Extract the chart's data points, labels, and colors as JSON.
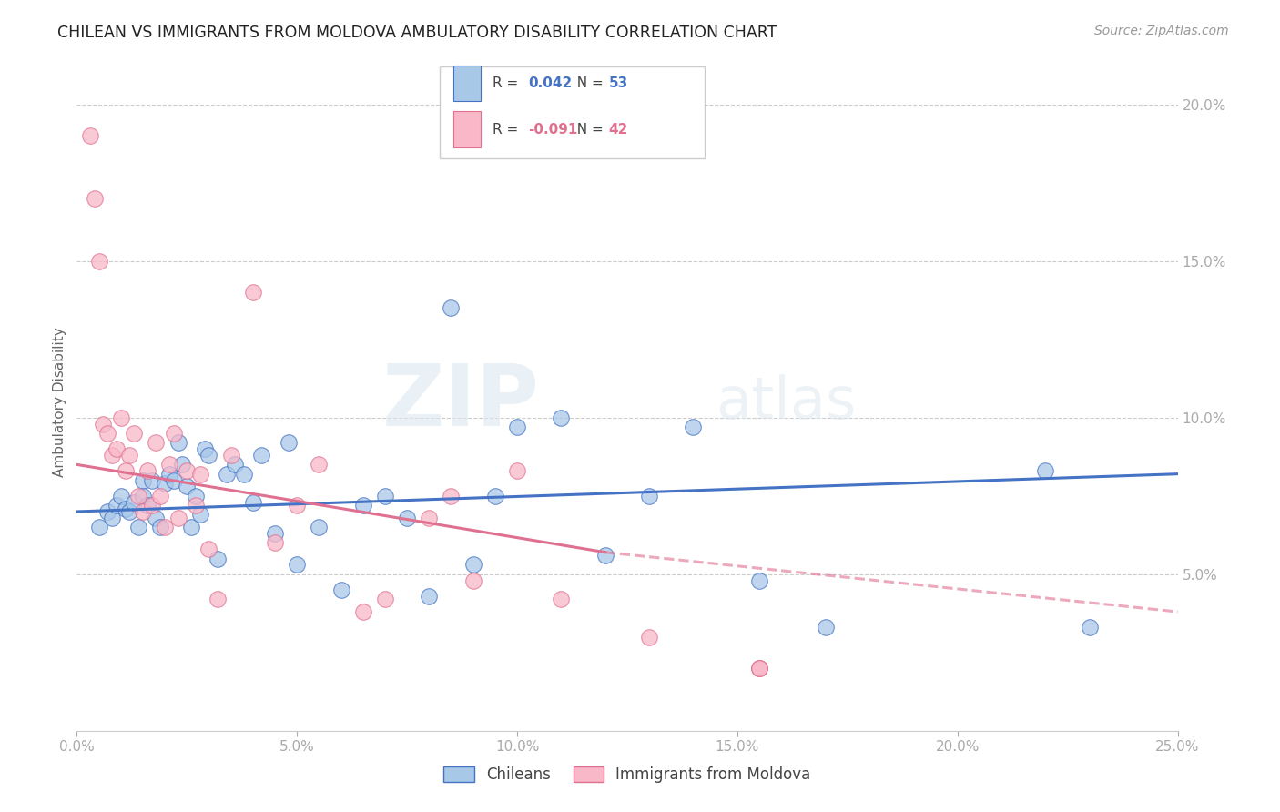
{
  "title": "CHILEAN VS IMMIGRANTS FROM MOLDOVA AMBULATORY DISABILITY CORRELATION CHART",
  "source": "Source: ZipAtlas.com",
  "ylabel": "Ambulatory Disability",
  "xlim": [
    0.0,
    0.25
  ],
  "ylim": [
    0.0,
    0.21
  ],
  "xticks": [
    0.0,
    0.05,
    0.1,
    0.15,
    0.2,
    0.25
  ],
  "yticks": [
    0.05,
    0.1,
    0.15,
    0.2
  ],
  "ytick_labels": [
    "5.0%",
    "10.0%",
    "15.0%",
    "20.0%"
  ],
  "xtick_labels": [
    "0.0%",
    "5.0%",
    "10.0%",
    "15.0%",
    "20.0%",
    "25.0%"
  ],
  "legend_label1": "Chileans",
  "legend_label2": "Immigrants from Moldova",
  "r1": "0.042",
  "n1": "53",
  "r2": "-0.091",
  "n2": "42",
  "color_blue": "#a8c8e8",
  "color_pink": "#f8b8c8",
  "line_blue": "#4472c4",
  "line_pink": "#e07090",
  "watermark_zip": "ZIP",
  "watermark_atlas": "atlas",
  "axis_color": "#5b9bd5",
  "blue_trend": [
    0.0,
    0.07,
    0.25,
    0.082
  ],
  "pink_trend_solid": [
    0.0,
    0.085,
    0.12,
    0.057
  ],
  "pink_trend_dash": [
    0.12,
    0.057,
    0.25,
    0.038
  ],
  "chileans_x": [
    0.005,
    0.007,
    0.008,
    0.009,
    0.01,
    0.011,
    0.012,
    0.013,
    0.014,
    0.015,
    0.015,
    0.016,
    0.017,
    0.018,
    0.019,
    0.02,
    0.021,
    0.022,
    0.023,
    0.024,
    0.025,
    0.026,
    0.027,
    0.028,
    0.029,
    0.03,
    0.032,
    0.034,
    0.036,
    0.038,
    0.04,
    0.042,
    0.045,
    0.048,
    0.05,
    0.055,
    0.06,
    0.065,
    0.07,
    0.075,
    0.08,
    0.085,
    0.09,
    0.095,
    0.1,
    0.11,
    0.12,
    0.13,
    0.14,
    0.155,
    0.17,
    0.22,
    0.23
  ],
  "chileans_y": [
    0.065,
    0.07,
    0.068,
    0.072,
    0.075,
    0.071,
    0.07,
    0.073,
    0.065,
    0.08,
    0.075,
    0.072,
    0.08,
    0.068,
    0.065,
    0.079,
    0.082,
    0.08,
    0.092,
    0.085,
    0.078,
    0.065,
    0.075,
    0.069,
    0.09,
    0.088,
    0.055,
    0.082,
    0.085,
    0.082,
    0.073,
    0.088,
    0.063,
    0.092,
    0.053,
    0.065,
    0.045,
    0.072,
    0.075,
    0.068,
    0.043,
    0.135,
    0.053,
    0.075,
    0.097,
    0.1,
    0.056,
    0.075,
    0.097,
    0.048,
    0.033,
    0.083,
    0.033
  ],
  "moldova_x": [
    0.003,
    0.004,
    0.005,
    0.006,
    0.007,
    0.008,
    0.009,
    0.01,
    0.011,
    0.012,
    0.013,
    0.014,
    0.015,
    0.016,
    0.017,
    0.018,
    0.019,
    0.02,
    0.021,
    0.022,
    0.023,
    0.025,
    0.027,
    0.028,
    0.03,
    0.032,
    0.035,
    0.04,
    0.045,
    0.05,
    0.055,
    0.065,
    0.07,
    0.08,
    0.085,
    0.09,
    0.1,
    0.11,
    0.13,
    0.155,
    0.155,
    0.155
  ],
  "moldova_y": [
    0.19,
    0.17,
    0.15,
    0.098,
    0.095,
    0.088,
    0.09,
    0.1,
    0.083,
    0.088,
    0.095,
    0.075,
    0.07,
    0.083,
    0.072,
    0.092,
    0.075,
    0.065,
    0.085,
    0.095,
    0.068,
    0.083,
    0.072,
    0.082,
    0.058,
    0.042,
    0.088,
    0.14,
    0.06,
    0.072,
    0.085,
    0.038,
    0.042,
    0.068,
    0.075,
    0.048,
    0.083,
    0.042,
    0.03,
    0.02,
    0.02,
    0.02
  ]
}
